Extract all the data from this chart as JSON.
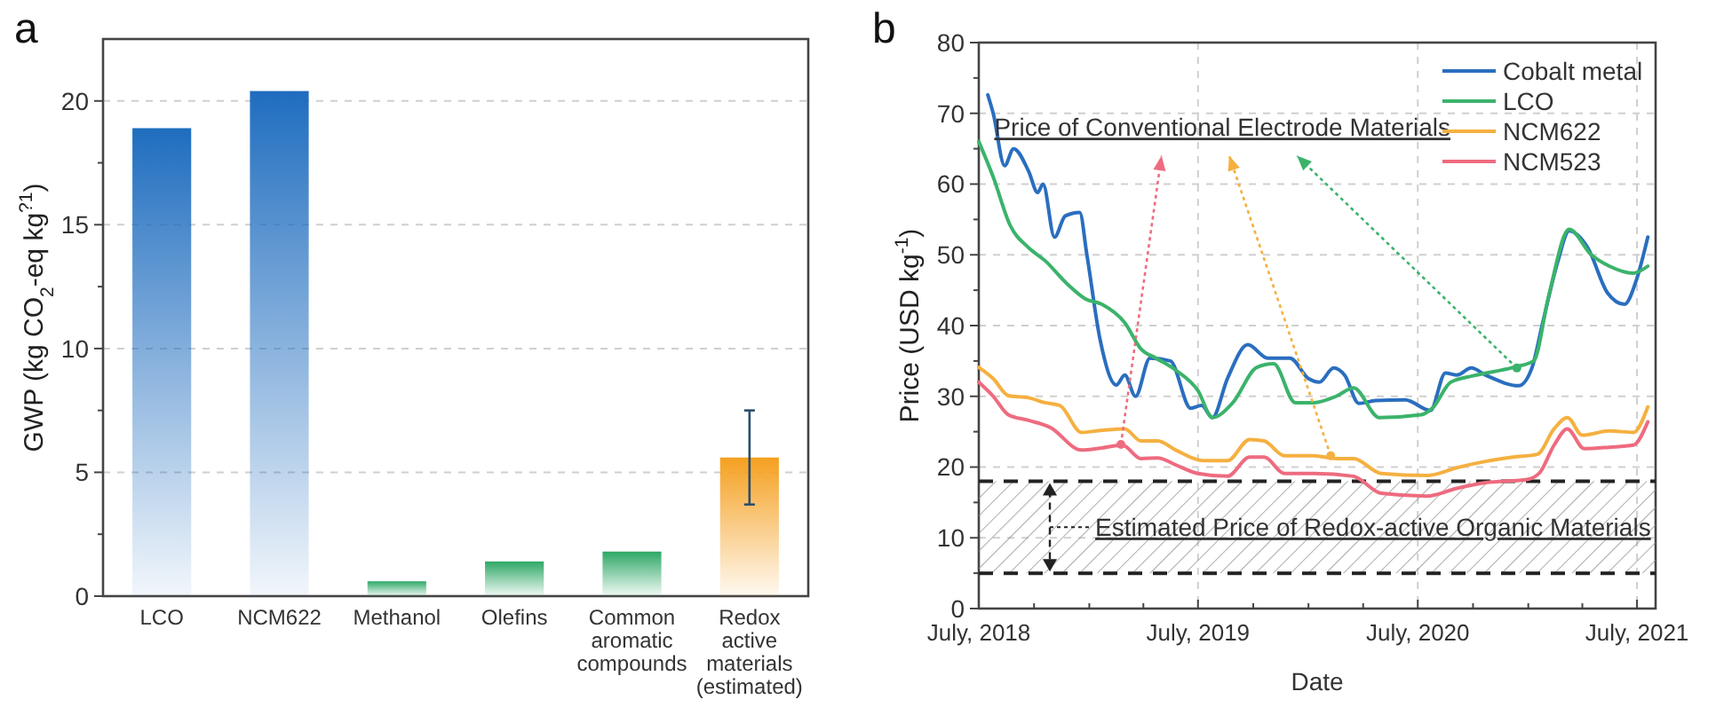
{
  "chart_data": [
    {
      "type": "bar",
      "title": "a",
      "ylabel": "GWP (kg CO$_{2}$-eq kg$^{?1}$)",
      "categories": [
        "LCO",
        "NCM622",
        "Methanol",
        "Olefins",
        "Common aromatic compounds",
        "Redox active materials (estimated)"
      ],
      "values": [
        18.9,
        20.4,
        0.6,
        1.4,
        1.8,
        5.6
      ],
      "colors": [
        "#1f6dbf",
        "#1f6dbf",
        "#2ea866",
        "#2ea866",
        "#2ea866",
        "#f5a020"
      ],
      "errors": [
        null,
        null,
        null,
        null,
        null,
        [
          3.7,
          7.5
        ]
      ],
      "ylim": [
        0,
        22.5
      ],
      "yticks": [
        0,
        {
          "value": 2.5,
          "label": null
        },
        5,
        {
          "value": 7.5,
          "label": null
        },
        10,
        {
          "value": 12.5,
          "label": null
        },
        15,
        {
          "value": 17.5,
          "label": null
        },
        20
      ],
      "grid": "y"
    },
    {
      "type": "line",
      "title": "b",
      "xlabel": "Date",
      "ylabel": "Price (USD kg$^{-1}$)",
      "xlim": [
        "2018-07",
        "2021-08"
      ],
      "xticks": [
        {
          "value": "2018-07",
          "label": "July, 2018"
        },
        {
          "value": "2018-10",
          "label": null
        },
        {
          "value": "2019-01",
          "label": null
        },
        {
          "value": "2019-04",
          "label": null
        },
        {
          "value": "2019-07",
          "label": "July, 2019"
        },
        {
          "value": "2019-10",
          "label": null
        },
        {
          "value": "2020-01",
          "label": null
        },
        {
          "value": "2020-04",
          "label": null
        },
        {
          "value": "2020-07",
          "label": "July, 2020"
        },
        {
          "value": "2020-10",
          "label": null
        },
        {
          "value": "2021-01",
          "label": null
        },
        {
          "value": "2021-04",
          "label": null
        },
        {
          "value": "2021-07",
          "label": "July, 2021"
        }
      ],
      "ylim": [
        0,
        80
      ],
      "yticks": [
        0,
        {
          "value": 5,
          "label": null
        },
        10,
        {
          "value": 15,
          "label": null
        },
        20,
        {
          "value": 25,
          "label": null
        },
        30,
        {
          "value": 35,
          "label": null
        },
        40,
        {
          "value": 45,
          "label": null
        },
        50,
        {
          "value": 55,
          "label": null
        },
        60,
        {
          "value": 65,
          "label": null
        },
        70,
        {
          "value": 75,
          "label": null
        },
        80
      ],
      "grid": true,
      "legend": "top right",
      "line_style": "solid",
      "marker": "none",
      "series": [
        {
          "name": "Cobalt metal",
          "color": "#2a6ebf",
          "x": [
            "2018-07-16",
            "2018-07-25",
            "2018-08-13",
            "2018-08-28",
            "2018-09-22",
            "2018-10-07",
            "2018-10-16",
            "2018-11-04",
            "2018-11-22",
            "2018-12-16",
            "2018-12-28",
            "2019-01-19",
            "2019-02-15",
            "2019-03-01",
            "2019-03-19",
            "2019-04-12",
            "2019-05-16",
            "2019-06-19",
            "2019-07-07",
            "2019-07-25",
            "2019-08-19",
            "2019-09-22",
            "2019-10-25",
            "2019-12-01",
            "2020-01-01",
            "2020-01-19",
            "2020-02-12",
            "2020-03-01",
            "2020-03-25",
            "2020-04-22",
            "2020-06-10",
            "2020-07-22",
            "2020-08-16",
            "2020-09-04",
            "2020-09-28",
            "2020-10-22",
            "2020-12-16",
            "2021-01-07",
            "2021-01-25",
            "2021-02-19",
            "2021-03-10",
            "2021-04-10",
            "2021-05-13",
            "2021-06-10",
            "2021-07-01",
            "2021-07-19"
          ],
          "values": [
            72.6,
            70,
            62.6,
            65,
            61.8,
            58.8,
            60,
            52.5,
            55.5,
            56,
            50,
            38,
            31.6,
            33,
            30,
            35.4,
            35,
            28.3,
            28.7,
            27,
            32.5,
            37.3,
            35.4,
            35.4,
            32.5,
            32,
            34,
            33,
            29,
            29.4,
            29.5,
            28,
            33.3,
            33,
            34,
            33,
            31.5,
            34,
            40.4,
            49,
            53.4,
            51,
            44.6,
            43,
            46.7,
            52.5
          ]
        },
        {
          "name": "LCO",
          "color": "#3bb36b",
          "x": [
            "2018-07-01",
            "2018-07-25",
            "2018-08-22",
            "2018-09-22",
            "2018-10-19",
            "2018-11-25",
            "2018-12-25",
            "2019-01-22",
            "2019-03-01",
            "2019-03-28",
            "2019-04-22",
            "2019-05-25",
            "2019-07-01",
            "2019-07-25",
            "2019-08-28",
            "2019-10-07",
            "2019-11-04",
            "2019-12-10",
            "2020-01-10",
            "2020-02-16",
            "2020-03-16",
            "2020-04-28",
            "2020-07-07",
            "2020-07-25",
            "2020-08-25",
            "2020-10-01",
            "2020-12-07",
            "2021-01-10",
            "2021-02-04",
            "2021-03-10",
            "2021-04-16",
            "2021-05-16",
            "2021-06-25",
            "2021-07-19"
          ],
          "values": [
            66,
            61,
            54.2,
            51,
            49.2,
            45.9,
            43.8,
            43,
            40.4,
            36.7,
            35.4,
            33.7,
            30.8,
            27,
            29.1,
            34.1,
            34.6,
            29.1,
            29.1,
            30,
            31.2,
            27,
            27.4,
            28.3,
            32,
            32.9,
            34.1,
            35,
            44.2,
            53.6,
            50,
            48.4,
            47.4,
            48.4
          ]
        },
        {
          "name": "NCM622",
          "color": "#f5b040",
          "x": [
            "2018-07-01",
            "2018-07-25",
            "2018-08-19",
            "2018-09-22",
            "2018-10-19",
            "2018-11-13",
            "2018-12-19",
            "2019-01-22",
            "2019-03-01",
            "2019-03-28",
            "2019-04-25",
            "2019-05-25",
            "2019-07-10",
            "2019-08-19",
            "2019-09-25",
            "2019-10-19",
            "2019-11-22",
            "2020-01-10",
            "2020-02-16",
            "2020-03-16",
            "2020-05-01",
            "2020-07-16",
            "2020-09-04",
            "2020-10-22",
            "2020-12-07",
            "2021-01-16",
            "2021-02-13",
            "2021-03-07",
            "2021-04-01",
            "2021-05-16",
            "2021-06-25",
            "2021-07-19"
          ],
          "values": [
            34.1,
            32.5,
            30.1,
            29.8,
            29.1,
            28.7,
            24.9,
            25.2,
            25.4,
            23.7,
            23.7,
            22.4,
            20.9,
            20.9,
            23.9,
            23.7,
            21.6,
            21.6,
            21.2,
            21.2,
            19.1,
            18.8,
            19.9,
            20.8,
            21.4,
            21.8,
            25.4,
            27,
            24.5,
            25.1,
            24.9,
            28.5
          ]
        },
        {
          "name": "NCM523",
          "color": "#ee6b7f",
          "x": [
            "2018-07-01",
            "2018-07-25",
            "2018-08-19",
            "2018-09-22",
            "2018-10-28",
            "2018-12-19",
            "2019-01-22",
            "2019-02-25",
            "2019-03-28",
            "2019-04-25",
            "2019-05-25",
            "2019-07-01",
            "2019-08-19",
            "2019-09-25",
            "2019-10-19",
            "2019-11-22",
            "2020-01-10",
            "2020-03-16",
            "2020-05-01",
            "2020-07-16",
            "2020-09-04",
            "2020-10-22",
            "2020-12-28",
            "2021-01-19",
            "2021-02-13",
            "2021-03-07",
            "2021-04-04",
            "2021-05-16",
            "2021-06-25",
            "2021-07-19"
          ],
          "values": [
            32,
            30,
            27.4,
            26.6,
            25.6,
            22.4,
            22.7,
            23.1,
            21.2,
            21.3,
            20.3,
            19.1,
            18.7,
            21.4,
            21.4,
            19.1,
            19.1,
            18.7,
            16.3,
            15.9,
            17,
            17.8,
            18.2,
            19.1,
            23.1,
            25.4,
            22.6,
            22.8,
            23.1,
            26.4
          ]
        }
      ],
      "annotations": [
        "Price of Conventional Electrode Materials"
      ],
      "bands": [
        {
          "axis": "y",
          "from": 5,
          "to": 18,
          "label": "Estimated Price of Redox-active Organic Materials",
          "color": "#888888"
        }
      ],
      "ref_lines": [
        {
          "axis": "y",
          "value": 5,
          "color": "#222222",
          "line_style": "dashed"
        },
        {
          "axis": "y",
          "value": 18,
          "color": "#222222",
          "line_style": "dashed"
        }
      ]
    }
  ]
}
